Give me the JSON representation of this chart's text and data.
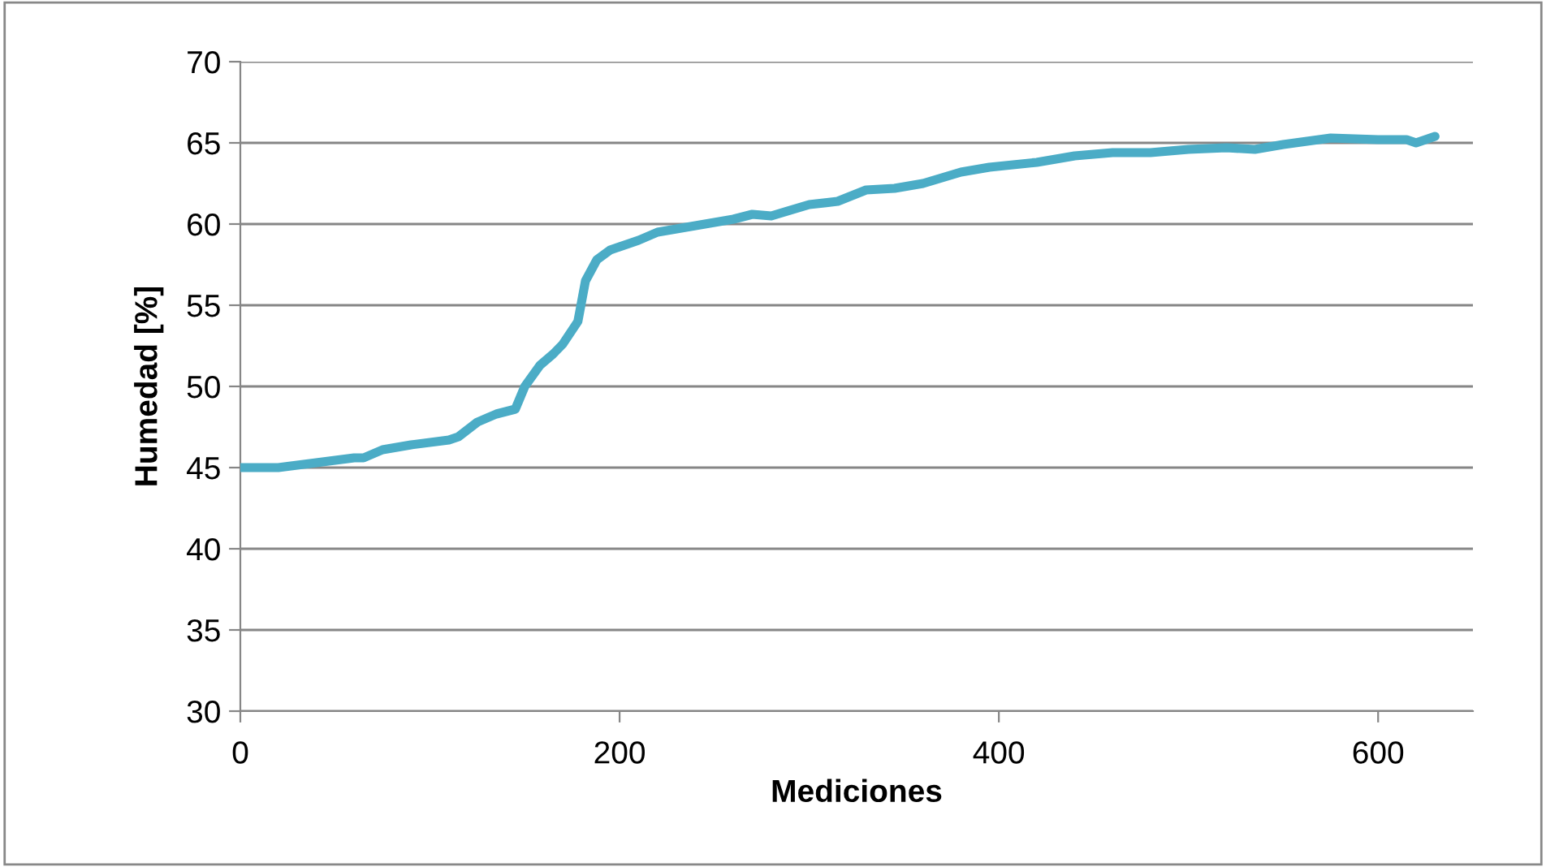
{
  "chart_data": {
    "type": "line",
    "xlabel": "Mediciones",
    "ylabel": "Humedad [%]",
    "xlim": [
      0,
      650
    ],
    "xticks": [
      0,
      200,
      400,
      600
    ],
    "ylim": [
      30,
      70
    ],
    "yticks": [
      30,
      35,
      40,
      45,
      50,
      55,
      60,
      65,
      70
    ],
    "grid": "y",
    "marker": "none",
    "line_style": "solid",
    "series": [
      {
        "color": "#4bacc6",
        "x": [
          0,
          20,
          40,
          60,
          65,
          75,
          90,
          110,
          115,
          125,
          135,
          145,
          150,
          158,
          165,
          170,
          178,
          182,
          188,
          195,
          210,
          220,
          240,
          260,
          270,
          280,
          300,
          315,
          330,
          345,
          360,
          380,
          395,
          420,
          440,
          460,
          480,
          500,
          520,
          535,
          550,
          575,
          600,
          615,
          620,
          630
        ],
        "values": [
          45.0,
          45.0,
          45.3,
          45.6,
          45.6,
          46.1,
          46.4,
          46.7,
          46.9,
          47.8,
          48.3,
          48.6,
          50.0,
          51.3,
          52.0,
          52.6,
          54.0,
          56.5,
          57.8,
          58.4,
          59.0,
          59.5,
          59.9,
          60.3,
          60.6,
          60.5,
          61.2,
          61.4,
          62.1,
          62.2,
          62.5,
          63.2,
          63.5,
          63.8,
          64.2,
          64.4,
          64.4,
          64.6,
          64.7,
          64.6,
          64.9,
          65.3,
          65.2,
          65.2,
          65.0,
          65.4
        ]
      }
    ]
  }
}
